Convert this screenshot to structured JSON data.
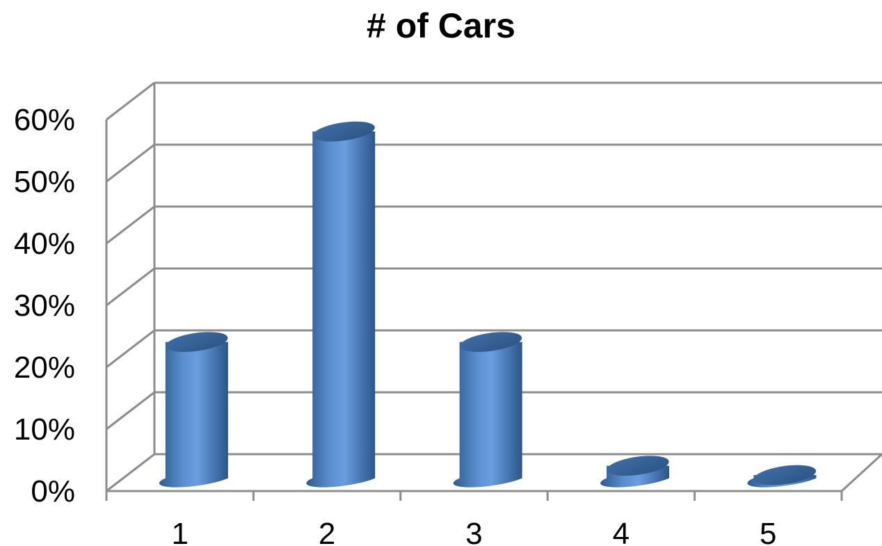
{
  "chart_data": {
    "type": "bar",
    "title": "# of Cars",
    "categories": [
      "1",
      "2",
      "3",
      "4",
      "5"
    ],
    "values": [
      22,
      56,
      22,
      2,
      0.5
    ],
    "yticks": [
      "0%",
      "10%",
      "20%",
      "30%",
      "40%",
      "50%",
      "60%"
    ],
    "ylim": [
      0,
      60
    ],
    "y_unit": "%",
    "grid": true,
    "legend": "none",
    "style": "3d-cylinder",
    "bar_color": "#4f81bd"
  }
}
